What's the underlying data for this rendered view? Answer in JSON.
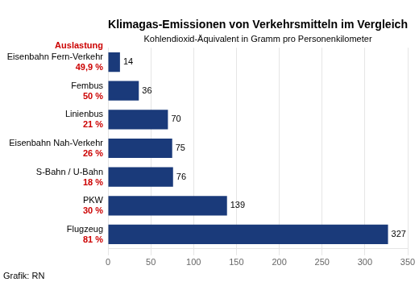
{
  "chart_data": {
    "type": "bar",
    "orientation": "horizontal",
    "title": "Klimagas-Emissionen von Verkehrsmitteln im Vergleich",
    "subtitle": "Kohlendioxid-Äquivalent in Gramm pro Personenkilometer",
    "footer": "Grafik: RN",
    "categories": [
      "Flugzeug",
      "PKW",
      "S-Bahn / U-Bahn",
      "Eisenbahn Nah-Verkehr",
      "Linienbus",
      "Fembus",
      "Eisenbahn Fern-Verkehr"
    ],
    "values": [
      327,
      139,
      76,
      75,
      70,
      36,
      14
    ],
    "color": "#1a3a7a",
    "data_labels": true,
    "xlim": [
      0,
      350
    ],
    "xticks": [
      0,
      50,
      100,
      150,
      200,
      250,
      300,
      350
    ],
    "grid": true,
    "percentages_title": "Auslastung",
    "percentages": [
      "81 %",
      "30 %",
      "18 %",
      "26 %",
      "21 %",
      "50 %",
      "49,9 %"
    ],
    "percentages_color": "#cc0000"
  }
}
